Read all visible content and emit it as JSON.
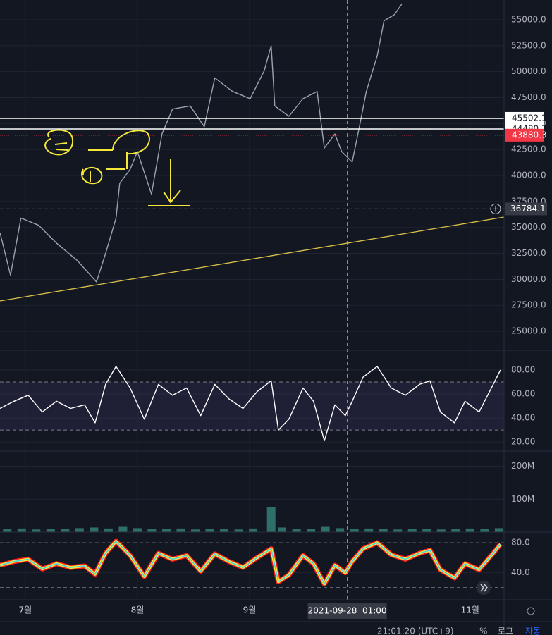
{
  "chart_data": [
    {
      "type": "line",
      "x": [
        -7.0,
        -4.1,
        -1.2,
        3.7,
        8.6,
        14.4,
        19.7,
        22.2,
        25.1,
        26.1,
        29.0,
        31.0,
        34.9,
        37.8,
        40.7,
        45.6,
        49.5,
        52.4,
        57.3,
        62.2,
        66.1,
        68.0,
        69.0,
        72.9,
        76.8,
        80.7,
        82.7,
        85.6,
        87.5,
        90.4,
        92.4,
        94.3,
        97.3,
        99.2,
        102.1,
        104.1
      ],
      "values": [
        34500,
        30400,
        35900,
        35200,
        33500,
        31800,
        29750,
        32500,
        35900,
        39250,
        40600,
        42300,
        38200,
        44000,
        46400,
        46700,
        44700,
        49400,
        48100,
        47400,
        50100,
        52500,
        46700,
        45700,
        47400,
        48100,
        42650,
        44000,
        42300,
        41300,
        44700,
        48100,
        51500,
        54900,
        55500,
        56500
      ],
      "color": "#9aa3b2",
      "xlim": [
        -7.0,
        132.4
      ],
      "xticks": [
        {
          "value": 0,
          "label": "7월"
        },
        {
          "value": 31,
          "label": "8월"
        },
        {
          "value": 62,
          "label": "9월"
        },
        {
          "value": 123,
          "label": "11월"
        }
      ],
      "ylim": [
        23170,
        56900
      ],
      "yticks": [
        {
          "value": 25000,
          "label": "25000.0"
        },
        {
          "value": 27500,
          "label": "27500.0"
        },
        {
          "value": 30000,
          "label": "30000.0"
        },
        {
          "value": 32500,
          "label": "32500.0"
        },
        {
          "value": 35000,
          "label": "35000.0"
        },
        {
          "value": 37500,
          "label": "37500.0"
        },
        {
          "value": 40000,
          "label": "40000.0"
        },
        {
          "value": 42500,
          "label": "42500.0"
        },
        {
          "value": 45000,
          "label": "45000.0"
        },
        {
          "value": 47500,
          "label": "47500.0"
        },
        {
          "value": 50000,
          "label": "50000.0"
        },
        {
          "value": 52500,
          "label": "52500.0"
        },
        {
          "value": 55000,
          "label": "55000.0"
        }
      ],
      "grid": true,
      "price_lines": [
        {
          "value": 45502.1,
          "color": "#ffffff"
        },
        {
          "value": 44480.3,
          "color": "#ffffff"
        },
        {
          "value": 43880.3,
          "color": "#f23645"
        }
      ],
      "crosshair": {
        "x": {
          "value": 89.04,
          "label": "2021-09-28  01:00"
        },
        "y": 36784.1
      }
    },
    {
      "type": "line",
      "x": [
        -7.0,
        -3.1,
        0.8,
        4.7,
        8.6,
        12.5,
        16.4,
        19.3,
        22.2,
        25.1,
        29.0,
        32.9,
        36.8,
        40.7,
        44.6,
        48.5,
        52.4,
        56.3,
        60.2,
        64.1,
        68.0,
        70.0,
        72.9,
        76.8,
        79.7,
        82.7,
        85.6,
        88.5,
        90.4,
        93.4,
        97.3,
        101.2,
        105.1,
        109.0,
        111.9,
        114.8,
        118.7,
        121.6,
        125.5,
        129.4,
        131.4
      ],
      "values": [
        48,
        54,
        59,
        45,
        54,
        48,
        51,
        36,
        68,
        83,
        65,
        39,
        68,
        59,
        65,
        42,
        68,
        56,
        48,
        62,
        71,
        30,
        39,
        65,
        54,
        21,
        51,
        42,
        54,
        74,
        83,
        65,
        59,
        68,
        71,
        45,
        36,
        54,
        45,
        68,
        80
      ],
      "color": "#ffffff",
      "ylim": [
        12.4,
        95.9
      ],
      "yticks": [
        {
          "value": 20,
          "label": "20.00"
        },
        {
          "value": 40,
          "label": "40.00"
        },
        {
          "value": 60,
          "label": "60.00"
        },
        {
          "value": 80,
          "label": "80.00"
        }
      ],
      "bands": [
        30,
        70
      ]
    },
    {
      "type": "bar",
      "x": [
        -5,
        -1,
        3,
        7,
        11,
        15,
        19,
        23,
        27,
        31,
        35,
        39,
        43,
        47,
        51,
        55,
        59,
        63,
        68,
        71,
        75,
        79,
        83,
        87,
        91,
        95,
        99,
        103,
        107,
        111,
        115,
        119,
        123,
        127,
        131
      ],
      "values": [
        9000000,
        11000000,
        8000000,
        10000000,
        9000000,
        12000000,
        14000000,
        11000000,
        16000000,
        12000000,
        10000000,
        9000000,
        11000000,
        8000000,
        9000000,
        10000000,
        8000000,
        11000000,
        77000000,
        14000000,
        10000000,
        9000000,
        16000000,
        12000000,
        10000000,
        11000000,
        9000000,
        8000000,
        9000000,
        10000000,
        8000000,
        9000000,
        11000000,
        10000000,
        12000000
      ],
      "color": "#2f6f6a",
      "ylim": [
        0,
        244000000
      ],
      "yticks": [
        {
          "value": 100000000,
          "label": "100M"
        },
        {
          "value": 200000000,
          "label": "200M"
        }
      ]
    },
    {
      "type": "line",
      "x": [
        -7.0,
        -3.1,
        0.8,
        4.7,
        8.6,
        12.5,
        16.4,
        19.3,
        22.2,
        25.1,
        29.0,
        32.9,
        36.8,
        40.7,
        44.6,
        48.5,
        52.4,
        56.3,
        60.2,
        64.1,
        68.0,
        70.0,
        72.9,
        76.8,
        79.7,
        82.7,
        85.6,
        88.5,
        90.4,
        93.4,
        97.3,
        101.2,
        105.1,
        109.0,
        111.9,
        114.8,
        118.7,
        121.6,
        125.5,
        129.4,
        131.4
      ],
      "values": [
        50,
        55,
        58,
        45,
        52,
        47,
        49,
        38,
        66,
        82,
        63,
        35,
        66,
        58,
        63,
        42,
        65,
        55,
        47,
        60,
        72,
        28,
        37,
        63,
        52,
        25,
        50,
        40,
        55,
        72,
        80,
        64,
        58,
        66,
        70,
        44,
        33,
        52,
        44,
        66,
        78
      ],
      "colors": [
        "#ff1a1a",
        "#ffeb3b",
        "#4dd0e1"
      ],
      "ylim": [
        3.8,
        93.3
      ],
      "yticks": [
        {
          "value": 40,
          "label": "40.0"
        },
        {
          "value": 80,
          "label": "80.0"
        }
      ],
      "bands": [
        20,
        80
      ]
    }
  ],
  "status_bar": {
    "time": "21:01:20 (UTC+9)",
    "buttons": [
      "%",
      "로그",
      "자동"
    ]
  }
}
